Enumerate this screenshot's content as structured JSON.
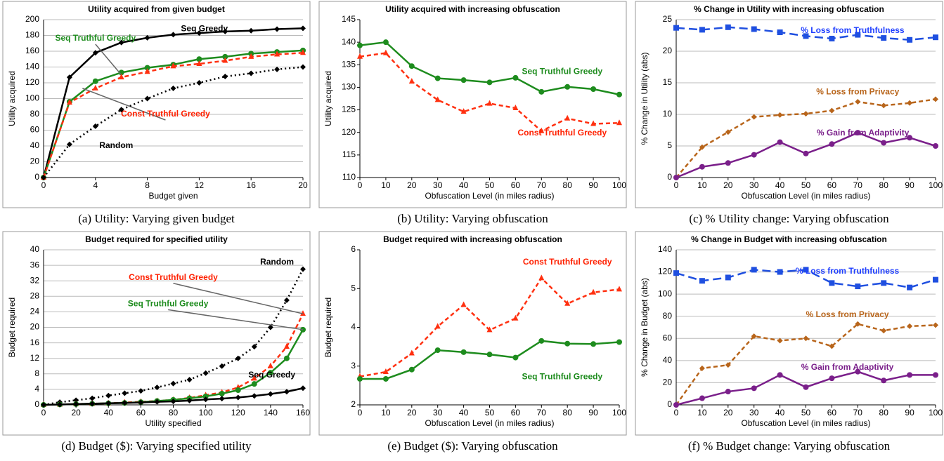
{
  "chart_data": [
    {
      "type": "line",
      "title": "Utility acquired from given budget",
      "caption": "(a) Utility: Varying given budget",
      "x_label": "Budget given",
      "y_label": "Utility acquired",
      "x": [
        0,
        2,
        4,
        6,
        8,
        10,
        12,
        14,
        16,
        18,
        20
      ],
      "xlim": [
        0,
        20
      ],
      "xticks": [
        0,
        4,
        8,
        12,
        16,
        20
      ],
      "ylim": [
        0,
        200
      ],
      "yticks": [
        0,
        20,
        40,
        60,
        80,
        100,
        120,
        140,
        160,
        180,
        200
      ],
      "grid": true,
      "series": [
        {
          "name": "Seq Greedy",
          "color": "#000000",
          "label_color": "#000000",
          "dash": "solid",
          "marker": "diamond",
          "values": [
            0,
            127,
            158,
            171,
            177,
            181,
            183,
            185,
            186,
            188,
            189
          ]
        },
        {
          "name": "Seq Truthful Greedy",
          "color": "#1e8c1e",
          "label_color": "#1e8c1e",
          "dash": "solid",
          "marker": "circle",
          "values": [
            0,
            96,
            122,
            133,
            139,
            143,
            150,
            153,
            157,
            159,
            161
          ]
        },
        {
          "name": "Const Truthful Greedy",
          "color": "#ff3010",
          "label_color": "#ff2000",
          "dash": "dashed",
          "marker": "triangle",
          "values": [
            0,
            95,
            113,
            127,
            134,
            141,
            144,
            148,
            153,
            156,
            158
          ]
        },
        {
          "name": "Random",
          "color": "#000000",
          "label_color": "#000000",
          "dash": "dotted",
          "marker": "diamond",
          "values": [
            0,
            42,
            65,
            86,
            100,
            113,
            120,
            128,
            132,
            137,
            140
          ]
        }
      ]
    },
    {
      "type": "line",
      "title": "Utility acquired with increasing obfuscation",
      "caption": "(b) Utility: Varying obfuscation",
      "x_label": "Obfuscation Level (in miles radius)",
      "y_label": "Utility acquired",
      "x": [
        0,
        10,
        20,
        30,
        40,
        50,
        60,
        70,
        80,
        90,
        100
      ],
      "xlim": [
        0,
        100
      ],
      "xticks": [
        0,
        10,
        20,
        30,
        40,
        50,
        60,
        70,
        80,
        90,
        100
      ],
      "ylim": [
        110,
        145
      ],
      "yticks": [
        110,
        115,
        120,
        125,
        130,
        135,
        140,
        145
      ],
      "grid": false,
      "series": [
        {
          "name": "Seq Truthful Greedy",
          "color": "#1e8c1e",
          "label_color": "#1e8c1e",
          "dash": "solid",
          "marker": "circle",
          "values": [
            139.3,
            140,
            134.7,
            132,
            131.6,
            131.1,
            132.1,
            129,
            130.1,
            129.6,
            128.4
          ]
        },
        {
          "name": "Const Truthful Greedy",
          "color": "#ff3010",
          "label_color": "#ff2000",
          "dash": "dashed",
          "marker": "triangle",
          "values": [
            136.8,
            137.6,
            131.3,
            127.2,
            124.6,
            126.4,
            125.4,
            120.3,
            123.1,
            121.9,
            122.1
          ]
        }
      ]
    },
    {
      "type": "line",
      "title": "% Change in Utility with increasing obfuscation",
      "caption": "(c) % Utility change: Varying obfuscation",
      "x_label": "Obfuscation Level (in miles radius)",
      "y_label": "% Change in Utility (abs)",
      "x": [
        0,
        10,
        20,
        30,
        40,
        50,
        60,
        70,
        80,
        90,
        100
      ],
      "xlim": [
        0,
        100
      ],
      "xticks": [
        0,
        10,
        20,
        30,
        40,
        50,
        60,
        70,
        80,
        90,
        100
      ],
      "ylim": [
        0,
        25
      ],
      "yticks": [
        0,
        5,
        10,
        15,
        20,
        25
      ],
      "grid": true,
      "series": [
        {
          "name": "% Loss from Truthfulness",
          "color": "#1f4fe0",
          "label_color": "#1f3fff",
          "dash": "longdash",
          "marker": "square",
          "values": [
            23.7,
            23.4,
            23.8,
            23.5,
            23,
            22.4,
            22,
            22.6,
            22.1,
            21.8,
            22.2
          ]
        },
        {
          "name": "% Loss from Privacy",
          "color": "#b8651b",
          "label_color": "#b8651b",
          "dash": "dashed",
          "marker": "diamond",
          "values": [
            0,
            4.8,
            7.2,
            9.6,
            9.9,
            10.1,
            10.6,
            12,
            11.4,
            11.8,
            12.4
          ]
        },
        {
          "name": "% Gain from Adaptivity",
          "color": "#7a1f8a",
          "label_color": "#7a1f8a",
          "dash": "solid",
          "marker": "circle",
          "values": [
            0,
            1.7,
            2.3,
            3.6,
            5.6,
            3.8,
            5.3,
            7.1,
            5.5,
            6.3,
            5
          ]
        }
      ]
    },
    {
      "type": "line",
      "title": "Budget required for specified utility",
      "caption": "(d) Budget ($): Varying specified utility",
      "x_label": "Utility specified",
      "y_label": "Budget required",
      "x": [
        0,
        10,
        20,
        30,
        40,
        50,
        60,
        70,
        80,
        90,
        100,
        110,
        120,
        130,
        140,
        150,
        160
      ],
      "xlim": [
        0,
        160
      ],
      "xticks": [
        0,
        20,
        40,
        60,
        80,
        100,
        120,
        140,
        160
      ],
      "ylim": [
        0,
        40
      ],
      "yticks": [
        0,
        4,
        8,
        12,
        16,
        20,
        24,
        28,
        32,
        36,
        40
      ],
      "grid": true,
      "series": [
        {
          "name": "Random",
          "color": "#000000",
          "label_color": "#000000",
          "dash": "dotted",
          "marker": "diamond",
          "values": [
            0,
            0.7,
            1.2,
            1.7,
            2.4,
            3,
            3.6,
            4.5,
            5.5,
            6.5,
            8.2,
            10,
            12,
            15,
            20,
            27,
            35
          ]
        },
        {
          "name": "Const Truthful Greedy",
          "color": "#ff3010",
          "label_color": "#ff2000",
          "dash": "dashed",
          "marker": "triangle",
          "values": [
            0,
            0.1,
            0.2,
            0.3,
            0.4,
            0.6,
            0.8,
            1,
            1.3,
            1.8,
            2.5,
            3.2,
            4.5,
            6.8,
            10,
            15,
            23.5
          ]
        },
        {
          "name": "Seq Truthful Greedy",
          "color": "#1e8c1e",
          "label_color": "#1e8c1e",
          "dash": "solid",
          "marker": "circle",
          "values": [
            0,
            0.1,
            0.2,
            0.3,
            0.4,
            0.5,
            0.7,
            1,
            1.3,
            1.7,
            2.2,
            2.9,
            3.8,
            5.4,
            8.3,
            12,
            19.4
          ]
        },
        {
          "name": "Seq Greedy",
          "color": "#000000",
          "label_color": "#000000",
          "dash": "solid",
          "marker": "diamond",
          "values": [
            0,
            0.1,
            0.2,
            0.3,
            0.4,
            0.5,
            0.6,
            0.8,
            0.9,
            1.1,
            1.4,
            1.6,
            1.9,
            2.3,
            2.8,
            3.4,
            4.3
          ]
        }
      ]
    },
    {
      "type": "line",
      "title": "Budget required with increasing obfuscation",
      "caption": "(e) Budget ($): Varying obfuscation",
      "x_label": "Obfuscation Level (in miles radius)",
      "y_label": "Budget required",
      "x": [
        0,
        10,
        20,
        30,
        40,
        50,
        60,
        70,
        80,
        90,
        100
      ],
      "xlim": [
        0,
        100
      ],
      "xticks": [
        0,
        10,
        20,
        30,
        40,
        50,
        60,
        70,
        80,
        90,
        100
      ],
      "ylim": [
        2,
        6
      ],
      "yticks": [
        2,
        3,
        4,
        5,
        6
      ],
      "grid": false,
      "series": [
        {
          "name": "Const Truthful Greedy",
          "color": "#ff3010",
          "label_color": "#ff2000",
          "dash": "dashed",
          "marker": "triangle",
          "values": [
            2.73,
            2.85,
            3.33,
            4.02,
            4.58,
            3.93,
            4.23,
            5.27,
            4.61,
            4.9,
            4.98
          ]
        },
        {
          "name": "Seq Truthful Greedy",
          "color": "#1e8c1e",
          "label_color": "#1e8c1e",
          "dash": "solid",
          "marker": "circle",
          "values": [
            2.67,
            2.67,
            2.91,
            3.41,
            3.36,
            3.3,
            3.22,
            3.65,
            3.58,
            3.57,
            3.62
          ]
        }
      ]
    },
    {
      "type": "line",
      "title": "% Change in Budget with increasing obfuscation",
      "caption": "(f) % Budget change: Varying obfuscation",
      "x_label": "Obfuscation Level (in miles radius)",
      "y_label": "% Change in Budget (abs)",
      "x": [
        0,
        10,
        20,
        30,
        40,
        50,
        60,
        70,
        80,
        90,
        100
      ],
      "xlim": [
        0,
        100
      ],
      "xticks": [
        0,
        10,
        20,
        30,
        40,
        50,
        60,
        70,
        80,
        90,
        100
      ],
      "ylim": [
        0,
        140
      ],
      "yticks": [
        0,
        20,
        40,
        60,
        80,
        100,
        120,
        140
      ],
      "grid": true,
      "series": [
        {
          "name": "% Loss from Truthfulness",
          "color": "#1f4fe0",
          "label_color": "#1f3fff",
          "dash": "longdash",
          "marker": "square",
          "values": [
            119,
            112,
            115,
            122,
            120,
            122,
            110,
            107,
            110,
            106,
            113
          ]
        },
        {
          "name": "% Loss from Privacy",
          "color": "#b8651b",
          "label_color": "#b8651b",
          "dash": "dashed",
          "marker": "diamond",
          "values": [
            0,
            33,
            36,
            62,
            58,
            60,
            53,
            73,
            67,
            71,
            72
          ]
        },
        {
          "name": "% Gain from Adaptivity",
          "color": "#7a1f8a",
          "label_color": "#7a1f8a",
          "dash": "solid",
          "marker": "circle",
          "values": [
            0,
            6,
            12,
            15,
            27,
            16,
            24,
            30,
            22,
            27,
            27
          ]
        }
      ]
    }
  ]
}
